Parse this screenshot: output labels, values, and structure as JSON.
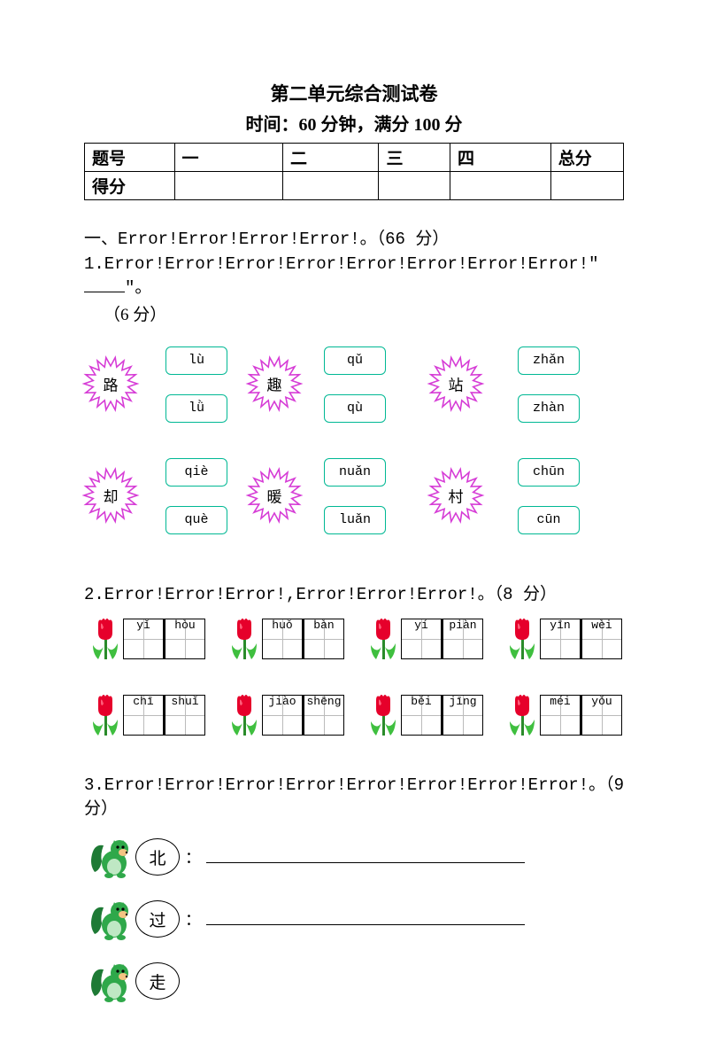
{
  "title": "第二单元综合测试卷",
  "subtitle": "时间：60 分钟，满分 100 分",
  "score_table": {
    "headers": [
      "题号",
      "一",
      "二",
      "三",
      "四",
      "总分"
    ],
    "row2_label": "得分"
  },
  "section1_label": "一、Error!Error!Error!Error!。（66 分）",
  "q1": {
    "label_pre": "1.Error!Error!Error!Error!Error!Error!Error!Error!\"",
    "label_post": "\"。",
    "points": "（6 分）",
    "items": [
      {
        "char": "路",
        "opts": [
          "lù",
          "lǜ"
        ]
      },
      {
        "char": "趣",
        "opts": [
          "qǔ",
          "qù"
        ]
      },
      {
        "char": "站",
        "opts": [
          "zhǎn",
          "zhàn"
        ]
      },
      {
        "char": "却",
        "opts": [
          "qiè",
          "què"
        ]
      },
      {
        "char": "暖",
        "opts": [
          "nuǎn",
          "luǎn"
        ]
      },
      {
        "char": "村",
        "opts": [
          "chūn",
          "cūn"
        ]
      }
    ],
    "colors": {
      "star_stroke": "#d63cd6",
      "box_border": "#00b894"
    }
  },
  "q2": {
    "label": "2.Error!Error!Error!,Error!Error!Error!。（8 分）",
    "row1": [
      [
        "yǐ",
        "hòu"
      ],
      [
        "huǒ",
        "bàn"
      ],
      [
        "yí",
        "piàn"
      ],
      [
        "yīn",
        "wèi"
      ]
    ],
    "row2": [
      [
        "chī",
        "shuǐ"
      ],
      [
        "jiào",
        "shēng"
      ],
      [
        "běi",
        "jīng"
      ],
      [
        "méi",
        "yǒu"
      ]
    ],
    "tulip": {
      "petal": "#e6002b",
      "highlight": "#ff5e7a",
      "stem": "#2a8b2a",
      "leaf": "#3fbf3f"
    }
  },
  "q3": {
    "label": "3.Error!Error!Error!Error!Error!Error!Error!Error!。（9 分）",
    "rows": [
      {
        "char": "北",
        "has_line": true
      },
      {
        "char": "过",
        "has_line": true
      },
      {
        "char": "走",
        "has_line": false
      }
    ],
    "squirrel": {
      "body": "#2fa84a",
      "tail": "#1e7a35",
      "belly": "#bfe8c4",
      "muzzle": "#f4c483"
    }
  }
}
